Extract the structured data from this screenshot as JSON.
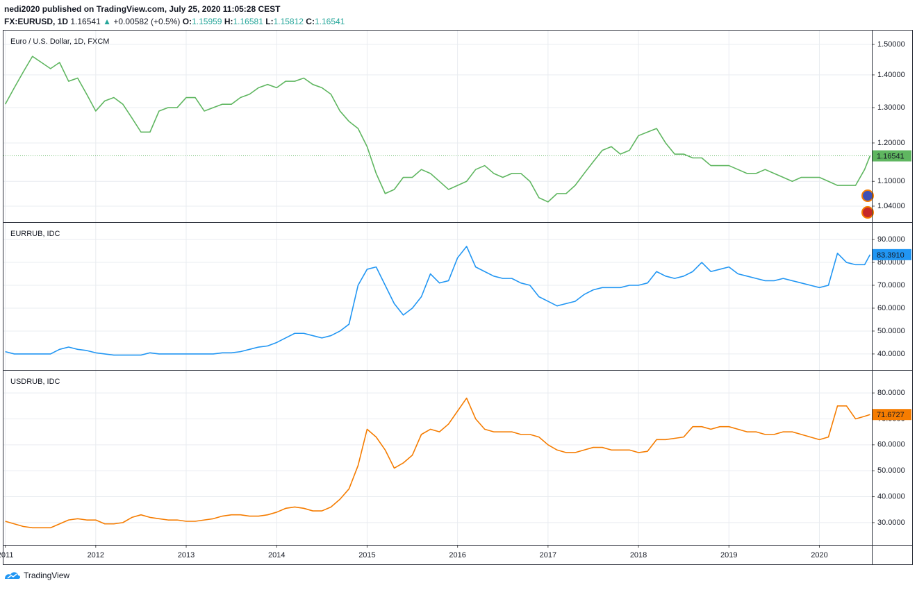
{
  "header": {
    "publisher": "nedi2020 published on TradingView.com, July 25, 2020 11:05:28 CEST",
    "symbol": "FX:EURUSD, 1D",
    "last": "1.16541",
    "change": "+0.00582 (+0.5%)",
    "ohlc": [
      {
        "label": "O:",
        "value": "1.15959"
      },
      {
        "label": "H:",
        "value": "1.16581"
      },
      {
        "label": "L:",
        "value": "1.15812"
      },
      {
        "label": "C:",
        "value": "1.16541"
      }
    ]
  },
  "footer": {
    "logo": "TradingView"
  },
  "chart_data": [
    {
      "type": "line",
      "title": "Euro / U.S. Dollar, 1D, FXCM",
      "color": "#5fb660",
      "log_scale": true,
      "grid": true,
      "price_line": true,
      "x": [
        2011,
        2011.1,
        2011.2,
        2011.3,
        2011.4,
        2011.5,
        2011.6,
        2011.7,
        2011.8,
        2011.9,
        2012,
        2012.1,
        2012.2,
        2012.3,
        2012.4,
        2012.5,
        2012.6,
        2012.7,
        2012.8,
        2012.9,
        2013,
        2013.1,
        2013.2,
        2013.3,
        2013.4,
        2013.5,
        2013.6,
        2013.7,
        2013.8,
        2013.9,
        2014,
        2014.1,
        2014.2,
        2014.3,
        2014.4,
        2014.5,
        2014.6,
        2014.7,
        2014.8,
        2014.9,
        2015,
        2015.1,
        2015.2,
        2015.3,
        2015.4,
        2015.5,
        2015.6,
        2015.7,
        2015.8,
        2015.9,
        2016,
        2016.1,
        2016.2,
        2016.3,
        2016.4,
        2016.5,
        2016.6,
        2016.7,
        2016.8,
        2016.9,
        2017,
        2017.1,
        2017.2,
        2017.3,
        2017.4,
        2017.5,
        2017.6,
        2017.7,
        2017.8,
        2017.9,
        2018,
        2018.1,
        2018.2,
        2018.3,
        2018.4,
        2018.5,
        2018.6,
        2018.7,
        2018.8,
        2018.9,
        2019,
        2019.1,
        2019.2,
        2019.3,
        2019.4,
        2019.5,
        2019.6,
        2019.7,
        2019.8,
        2019.9,
        2020,
        2020.1,
        2020.2,
        2020.3,
        2020.4,
        2020.5,
        2020.56
      ],
      "values": [
        1.31,
        1.36,
        1.41,
        1.46,
        1.44,
        1.42,
        1.44,
        1.38,
        1.39,
        1.34,
        1.29,
        1.32,
        1.33,
        1.31,
        1.27,
        1.23,
        1.23,
        1.29,
        1.3,
        1.3,
        1.33,
        1.33,
        1.29,
        1.3,
        1.31,
        1.31,
        1.33,
        1.34,
        1.36,
        1.37,
        1.36,
        1.38,
        1.38,
        1.39,
        1.37,
        1.36,
        1.34,
        1.29,
        1.26,
        1.24,
        1.19,
        1.12,
        1.07,
        1.08,
        1.11,
        1.11,
        1.13,
        1.12,
        1.1,
        1.08,
        1.09,
        1.1,
        1.13,
        1.14,
        1.12,
        1.11,
        1.12,
        1.12,
        1.1,
        1.06,
        1.05,
        1.07,
        1.07,
        1.09,
        1.12,
        1.15,
        1.18,
        1.19,
        1.17,
        1.18,
        1.22,
        1.23,
        1.24,
        1.2,
        1.17,
        1.17,
        1.16,
        1.16,
        1.14,
        1.14,
        1.14,
        1.13,
        1.12,
        1.12,
        1.13,
        1.12,
        1.11,
        1.1,
        1.11,
        1.11,
        1.11,
        1.1,
        1.09,
        1.09,
        1.09,
        1.13,
        1.16541
      ],
      "last_value": {
        "value": 1.16541,
        "label": "1.16541"
      },
      "xlim": [
        2010.98,
        2020.58
      ],
      "xticks": [
        2011,
        2012,
        2013,
        2014,
        2015,
        2016,
        2017,
        2018,
        2019,
        2020
      ],
      "ylim": [
        1.003,
        1.548
      ],
      "yticks": [
        {
          "value": 1.04,
          "label": "1.04000"
        },
        {
          "value": 1.1,
          "label": "1.10000"
        },
        {
          "value": 1.2,
          "label": "1.20000"
        },
        {
          "value": 1.3,
          "label": "1.30000"
        },
        {
          "value": 1.4,
          "label": "1.40000"
        },
        {
          "value": 1.5,
          "label": "1.50000"
        }
      ]
    },
    {
      "type": "line",
      "title": "EURRUB, IDC",
      "color": "#2196f3",
      "log_scale": false,
      "grid": true,
      "price_line": false,
      "x": [
        2011,
        2011.1,
        2011.2,
        2011.3,
        2011.4,
        2011.5,
        2011.6,
        2011.7,
        2011.8,
        2011.9,
        2012,
        2012.1,
        2012.2,
        2012.3,
        2012.4,
        2012.5,
        2012.6,
        2012.7,
        2012.8,
        2012.9,
        2013,
        2013.1,
        2013.2,
        2013.3,
        2013.4,
        2013.5,
        2013.6,
        2013.7,
        2013.8,
        2013.9,
        2014,
        2014.1,
        2014.2,
        2014.3,
        2014.4,
        2014.5,
        2014.6,
        2014.7,
        2014.8,
        2014.9,
        2015,
        2015.1,
        2015.2,
        2015.3,
        2015.4,
        2015.5,
        2015.6,
        2015.7,
        2015.8,
        2015.9,
        2016,
        2016.1,
        2016.2,
        2016.3,
        2016.4,
        2016.5,
        2016.6,
        2016.7,
        2016.8,
        2016.9,
        2017,
        2017.1,
        2017.2,
        2017.3,
        2017.4,
        2017.5,
        2017.6,
        2017.7,
        2017.8,
        2017.9,
        2018,
        2018.1,
        2018.2,
        2018.3,
        2018.4,
        2018.5,
        2018.6,
        2018.7,
        2018.8,
        2018.9,
        2019,
        2019.1,
        2019.2,
        2019.3,
        2019.4,
        2019.5,
        2019.6,
        2019.7,
        2019.8,
        2019.9,
        2020,
        2020.1,
        2020.2,
        2020.3,
        2020.4,
        2020.5,
        2020.56
      ],
      "values": [
        41,
        40,
        40,
        40,
        40,
        40,
        42,
        43,
        42,
        41.5,
        40.5,
        40,
        39.5,
        39.5,
        39.5,
        39.5,
        40.5,
        40,
        40,
        40,
        40,
        40,
        40,
        40,
        40.5,
        40.5,
        41,
        42,
        43,
        43.5,
        45,
        47,
        49,
        49,
        48,
        47,
        48,
        50,
        53,
        70,
        77,
        78,
        70,
        62,
        57,
        60,
        65,
        75,
        71,
        72,
        82,
        87,
        78,
        76,
        74,
        73,
        73,
        71,
        70,
        65,
        63,
        61,
        62,
        63,
        66,
        68,
        69,
        69,
        69,
        70,
        70,
        71,
        76,
        74,
        73,
        74,
        76,
        80,
        76,
        77,
        78,
        75,
        74,
        73,
        72,
        72,
        73,
        72,
        71,
        70,
        69,
        70,
        84,
        80,
        79,
        79,
        83.391
      ],
      "last_value": {
        "value": 83.391,
        "label": "83.3910"
      },
      "xlim": [
        2010.98,
        2020.58
      ],
      "xticks": [
        2011,
        2012,
        2013,
        2014,
        2015,
        2016,
        2017,
        2018,
        2019,
        2020
      ],
      "ylim": [
        33.0,
        97.3
      ],
      "yticks": [
        {
          "value": 40,
          "label": "40.0000"
        },
        {
          "value": 50,
          "label": "50.0000"
        },
        {
          "value": 60,
          "label": "60.0000"
        },
        {
          "value": 70,
          "label": "70.0000"
        },
        {
          "value": 80,
          "label": "80.0000"
        },
        {
          "value": 90,
          "label": "90.0000"
        }
      ]
    },
    {
      "type": "line",
      "title": "USDRUB, IDC",
      "color": "#f57c00",
      "log_scale": false,
      "grid": true,
      "price_line": false,
      "x": [
        2011,
        2011.1,
        2011.2,
        2011.3,
        2011.4,
        2011.5,
        2011.6,
        2011.7,
        2011.8,
        2011.9,
        2012,
        2012.1,
        2012.2,
        2012.3,
        2012.4,
        2012.5,
        2012.6,
        2012.7,
        2012.8,
        2012.9,
        2013,
        2013.1,
        2013.2,
        2013.3,
        2013.4,
        2013.5,
        2013.6,
        2013.7,
        2013.8,
        2013.9,
        2014,
        2014.1,
        2014.2,
        2014.3,
        2014.4,
        2014.5,
        2014.6,
        2014.7,
        2014.8,
        2014.9,
        2015,
        2015.1,
        2015.2,
        2015.3,
        2015.4,
        2015.5,
        2015.6,
        2015.7,
        2015.8,
        2015.9,
        2016,
        2016.1,
        2016.2,
        2016.3,
        2016.4,
        2016.5,
        2016.6,
        2016.7,
        2016.8,
        2016.9,
        2017,
        2017.1,
        2017.2,
        2017.3,
        2017.4,
        2017.5,
        2017.6,
        2017.7,
        2017.8,
        2017.9,
        2018,
        2018.1,
        2018.2,
        2018.3,
        2018.4,
        2018.5,
        2018.6,
        2018.7,
        2018.8,
        2018.9,
        2019,
        2019.1,
        2019.2,
        2019.3,
        2019.4,
        2019.5,
        2019.6,
        2019.7,
        2019.8,
        2019.9,
        2020,
        2020.1,
        2020.2,
        2020.3,
        2020.4,
        2020.5,
        2020.56
      ],
      "values": [
        30.5,
        29.5,
        28.5,
        28,
        28,
        28,
        29.5,
        31,
        31.5,
        31,
        31,
        29.5,
        29.5,
        30,
        32,
        33,
        32,
        31.5,
        31,
        31,
        30.5,
        30.5,
        31,
        31.5,
        32.5,
        33,
        33,
        32.5,
        32.5,
        33,
        34,
        35.5,
        36,
        35.5,
        34.5,
        34.5,
        36,
        39,
        43,
        52,
        66,
        63,
        58,
        51,
        53,
        56,
        64,
        66,
        65,
        68,
        73,
        78,
        70,
        66,
        65,
        65,
        65,
        64,
        64,
        63,
        60,
        58,
        57,
        57,
        58,
        59,
        59,
        58,
        58,
        58,
        57,
        57.5,
        62,
        62,
        62.5,
        63,
        67,
        67,
        66,
        67,
        67,
        66,
        65,
        65,
        64,
        64,
        65,
        65,
        64,
        63,
        62,
        63,
        75,
        75,
        70,
        71,
        71.6727
      ],
      "last_value": {
        "value": 71.6727,
        "label": "71.6727"
      },
      "xlim": [
        2010.98,
        2020.58
      ],
      "xticks": [
        2011,
        2012,
        2013,
        2014,
        2015,
        2016,
        2017,
        2018,
        2019,
        2020
      ],
      "ylim": [
        21.4,
        88.6
      ],
      "yticks": [
        {
          "value": 30,
          "label": "30.0000"
        },
        {
          "value": 40,
          "label": "40.0000"
        },
        {
          "value": 50,
          "label": "50.0000"
        },
        {
          "value": 60,
          "label": "60.0000"
        },
        {
          "value": 70,
          "label": "70.0000"
        },
        {
          "value": 80,
          "label": "80.0000"
        }
      ]
    }
  ]
}
